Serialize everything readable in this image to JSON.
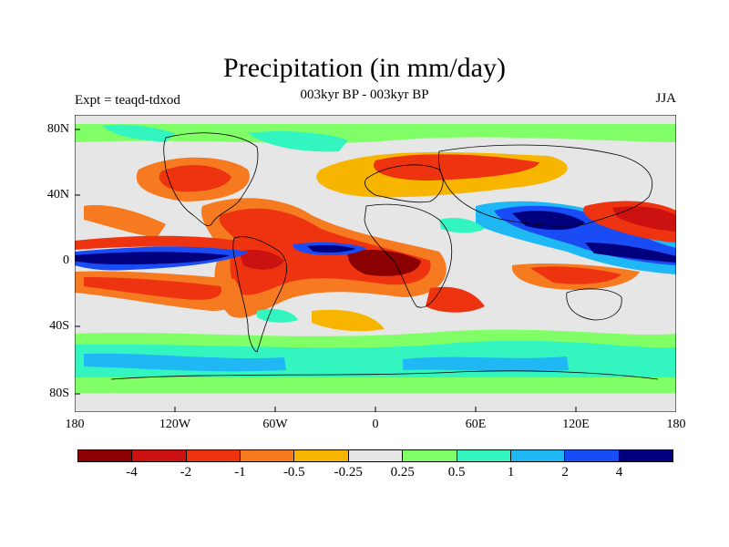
{
  "title": "Precipitation (in mm/day)",
  "left_label": "Expt = teaqd-tdxod",
  "center_label": "003kyr BP - 003kyr BP",
  "right_label": "JJA",
  "y_ticks": [
    "80N",
    "40N",
    "0",
    "40S",
    "80S"
  ],
  "x_ticks": [
    "180",
    "120W",
    "60W",
    "0",
    "60E",
    "120E",
    "180"
  ],
  "colorbar": {
    "colors": [
      "#8b0000",
      "#cc1111",
      "#ee3311",
      "#f57a20",
      "#f7b500",
      "#e6e6e6",
      "#80ff66",
      "#33f5c0",
      "#1fb8f5",
      "#1a4cf5",
      "#00007f"
    ],
    "labels": [
      "-4",
      "-2",
      "-1",
      "-0.5",
      "-0.25",
      "0.25",
      "0.5",
      "1",
      "2",
      "4"
    ]
  },
  "colors": {
    "background": "#e6e6e6",
    "coast": "#000000"
  }
}
